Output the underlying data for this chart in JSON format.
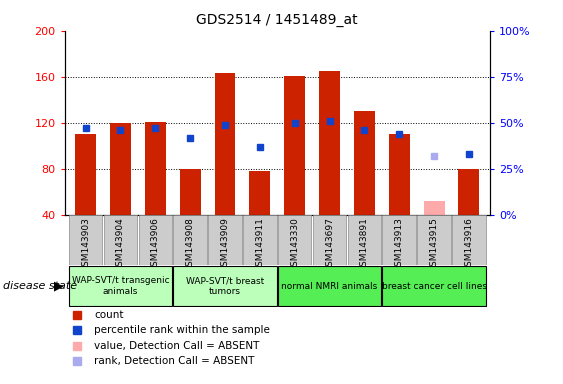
{
  "title": "GDS2514 / 1451489_at",
  "samples": [
    "GSM143903",
    "GSM143904",
    "GSM143906",
    "GSM143908",
    "GSM143909",
    "GSM143911",
    "GSM143330",
    "GSM143697",
    "GSM143891",
    "GSM143913",
    "GSM143915",
    "GSM143916"
  ],
  "count_values": [
    110,
    120,
    121,
    80,
    163,
    78,
    161,
    165,
    130,
    110,
    52,
    80
  ],
  "rank_values": [
    47,
    46,
    47,
    42,
    49,
    37,
    50,
    51,
    46,
    44,
    null,
    33
  ],
  "absent_count": [
    null,
    null,
    null,
    null,
    null,
    null,
    null,
    null,
    null,
    null,
    52,
    null
  ],
  "absent_rank": [
    null,
    null,
    null,
    null,
    null,
    null,
    null,
    null,
    null,
    null,
    32,
    null
  ],
  "group_boundaries": [
    {
      "label": "WAP-SVT/t transgenic\nanimals",
      "start": 0,
      "end": 2,
      "color": "#bbffbb"
    },
    {
      "label": "WAP-SVT/t breast\ntumors",
      "start": 3,
      "end": 5,
      "color": "#bbffbb"
    },
    {
      "label": "normal NMRI animals",
      "start": 6,
      "end": 8,
      "color": "#55ee55"
    },
    {
      "label": "breast cancer cell lines",
      "start": 9,
      "end": 11,
      "color": "#55ee55"
    }
  ],
  "ylim_left": [
    40,
    200
  ],
  "ylim_right": [
    0,
    100
  ],
  "bar_color": "#cc2200",
  "rank_color": "#1144cc",
  "absent_bar_color": "#ffaaaa",
  "absent_rank_color": "#aaaaee",
  "grid_yticks": [
    80,
    120,
    160
  ],
  "left_yticks": [
    40,
    80,
    120,
    160,
    200
  ],
  "right_yticks": [
    0,
    25,
    50,
    75,
    100
  ],
  "right_yticklabels": [
    "0%",
    "25%",
    "50%",
    "75%",
    "100%"
  ],
  "plot_bg": "#ffffff",
  "sample_box_color": "#cccccc",
  "legend_items": [
    {
      "color": "#cc2200",
      "marker": "s",
      "label": "count"
    },
    {
      "color": "#1144cc",
      "marker": "s",
      "label": "percentile rank within the sample"
    },
    {
      "color": "#ffaaaa",
      "marker": "s",
      "label": "value, Detection Call = ABSENT"
    },
    {
      "color": "#aaaaee",
      "marker": "s",
      "label": "rank, Detection Call = ABSENT"
    }
  ]
}
